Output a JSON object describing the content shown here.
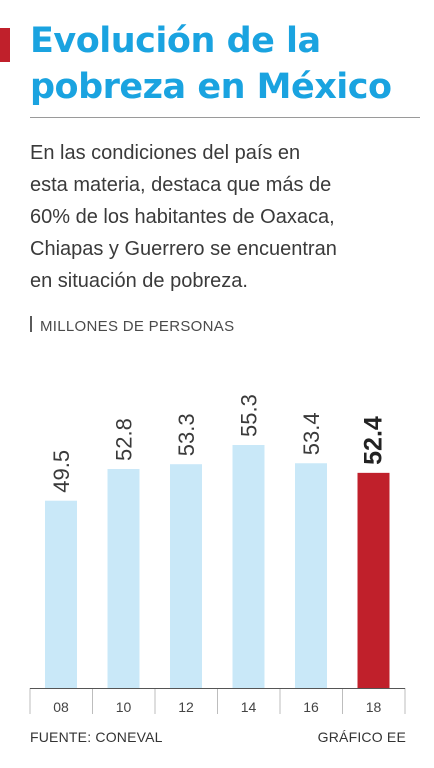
{
  "header": {
    "title_lines": [
      "Evolución de la",
      "pobreza en México"
    ],
    "subtitle_lines": [
      "En las condiciones del país en",
      "esta materia, destaca que más de",
      "60% de los habitantes de Oaxaca,",
      "Chiapas y Guerrero se encuentran",
      "en situación de pobreza."
    ],
    "unit": "MILLONES DE PERSONAS"
  },
  "footer": {
    "source": "FUENTE: CONEVAL",
    "credit": "GRÁFICO EE"
  },
  "colors": {
    "accent": "#c0202b",
    "title": "#1aa3e0",
    "bar": "#c9e8f8",
    "highlight_bar": "#c0202b",
    "axis": "#555555"
  },
  "chart_data": {
    "type": "bar",
    "title": "Evolución de la pobreza en México",
    "ylabel": "MILLONES DE PERSONAS",
    "categories": [
      "08",
      "10",
      "12",
      "14",
      "16",
      "18"
    ],
    "values": [
      49.5,
      52.8,
      53.3,
      55.3,
      53.4,
      52.4
    ],
    "value_labels": [
      "49.5",
      "52.8",
      "53.3",
      "55.3",
      "53.4",
      "52.4"
    ],
    "highlight_index": 5,
    "ylim": [
      30,
      56
    ],
    "grid": false,
    "legend": "none"
  }
}
